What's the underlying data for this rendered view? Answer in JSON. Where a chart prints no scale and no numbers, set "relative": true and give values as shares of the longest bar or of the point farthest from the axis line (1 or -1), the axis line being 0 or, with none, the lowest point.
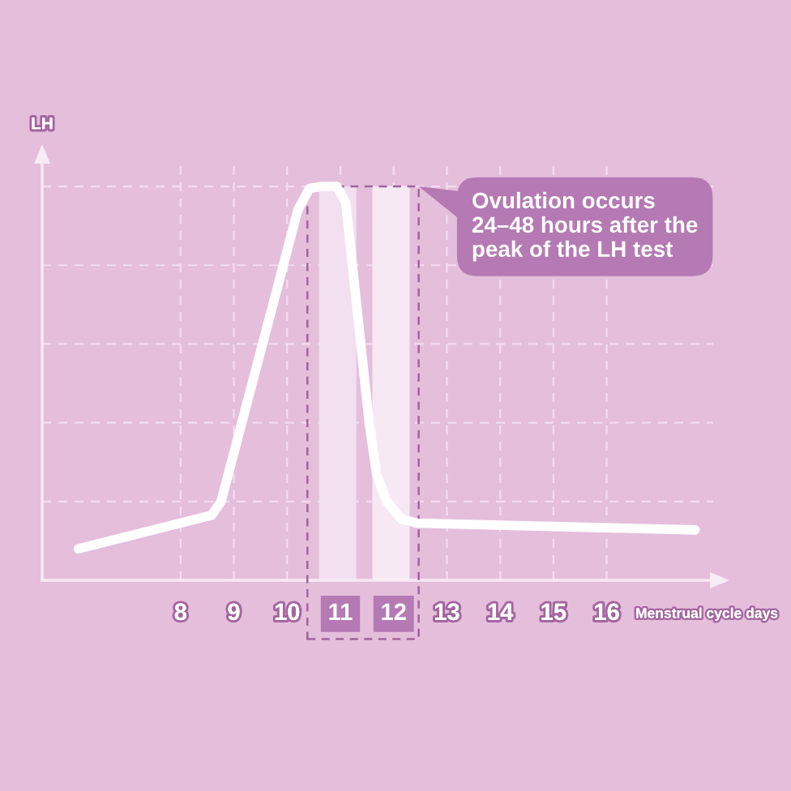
{
  "chart_data": {
    "type": "line",
    "xlabel": "Menstrual cycle days",
    "ylabel": "LH",
    "relative": true,
    "x": [
      6.08,
      8.58,
      8.76,
      10.2,
      10.42,
      10.65,
      10.93,
      11.1,
      11.54,
      11.68,
      11.87,
      12.15,
      12.45,
      17.66
    ],
    "xlim": [
      5.4,
      18
    ],
    "xticks": [
      8,
      9,
      10,
      11,
      12,
      13,
      14,
      15,
      16
    ],
    "series": [
      {
        "color": "#ffffff",
        "values": [
          0.08,
          0.165,
          0.2,
          0.94,
          0.995,
          1.0,
          1.0,
          0.96,
          0.4,
          0.27,
          0.2,
          0.155,
          0.145,
          0.128
        ]
      }
    ],
    "bands": [
      {
        "axis": "x",
        "from": 10.6,
        "to": 11.3,
        "color": "#f2dff0"
      },
      {
        "axis": "x",
        "from": 11.6,
        "to": 12.3,
        "color": "#f6e9f4"
      }
    ],
    "annotations": [
      "Ovulation occurs\n24–48 hours after the\npeak of the LH test"
    ],
    "grid": true,
    "line_style": "solid"
  }
}
